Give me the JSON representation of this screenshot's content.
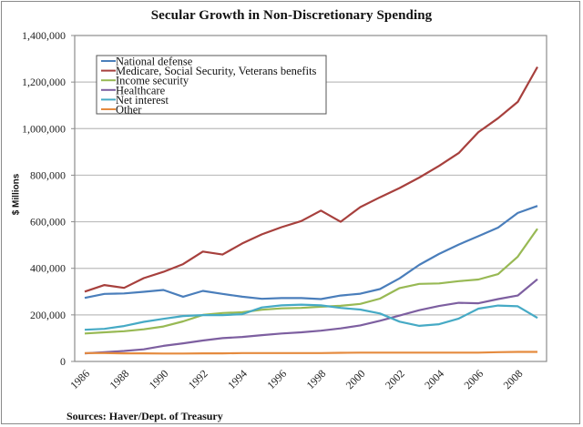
{
  "chart_data": {
    "type": "line",
    "title": "Secular Growth in Non-Discretionary Spending",
    "xlabel": "",
    "ylabel": "$ Millions",
    "source": "Sources: Haver/Dept. of Treasury",
    "ylim": [
      0,
      1400000
    ],
    "y_ticks": [
      0,
      200000,
      400000,
      600000,
      800000,
      1000000,
      1200000,
      1400000
    ],
    "y_tick_labels": [
      "0",
      "200,000",
      "400,000",
      "600,000",
      "800,000",
      "1,000,000",
      "1,200,000",
      "1,400,000"
    ],
    "x": [
      1986,
      1987,
      1988,
      1989,
      1990,
      1991,
      1992,
      1993,
      1994,
      1995,
      1996,
      1997,
      1998,
      1999,
      2000,
      2001,
      2002,
      2003,
      2004,
      2005,
      2006,
      2007,
      2008,
      2009
    ],
    "x_tick_labels": [
      "1986",
      "1988",
      "1990",
      "1992",
      "1994",
      "1996",
      "1998",
      "2000",
      "2002",
      "2004",
      "2006",
      "2008"
    ],
    "grid": true,
    "legend_position": "top-left",
    "series": [
      {
        "name": "National defense",
        "color": "#4a7ebb",
        "values": [
          273000,
          290000,
          292000,
          299000,
          307000,
          278000,
          303000,
          290000,
          278000,
          269000,
          272000,
          272000,
          268000,
          283000,
          291000,
          311000,
          357000,
          415000,
          462000,
          502000,
          538000,
          575000,
          638000,
          668000
        ]
      },
      {
        "name": "Medicare, Social Security, Veterans benefits",
        "color": "#a7403d",
        "values": [
          300000,
          328000,
          316000,
          358000,
          385000,
          418000,
          472000,
          459000,
          507000,
          546000,
          577000,
          603000,
          648000,
          600000,
          663000,
          705000,
          745000,
          790000,
          840000,
          895000,
          985000,
          1045000,
          1115000,
          1265000
        ]
      },
      {
        "name": "Income security",
        "color": "#98b954",
        "values": [
          120000,
          125000,
          130000,
          138000,
          150000,
          172000,
          200000,
          208000,
          211000,
          222000,
          228000,
          230000,
          235000,
          239000,
          247000,
          270000,
          315000,
          333000,
          335000,
          345000,
          352000,
          375000,
          450000,
          570000
        ]
      },
      {
        "name": "Healthcare",
        "color": "#7d5fa0",
        "values": [
          35000,
          40000,
          45000,
          52000,
          67000,
          78000,
          90000,
          100000,
          105000,
          113000,
          120000,
          125000,
          132000,
          142000,
          155000,
          175000,
          197000,
          220000,
          238000,
          252000,
          250000,
          268000,
          283000,
          353000
        ]
      },
      {
        "name": "Net interest",
        "color": "#46aac5",
        "values": [
          136000,
          140000,
          152000,
          170000,
          183000,
          195000,
          199000,
          199000,
          203000,
          232000,
          241000,
          244000,
          241000,
          230000,
          223000,
          206000,
          171000,
          153000,
          160000,
          184000,
          227000,
          240000,
          237000,
          187000
        ]
      },
      {
        "name": "Other",
        "color": "#e58b3f",
        "values": [
          36000,
          36000,
          35000,
          35000,
          34000,
          34000,
          35000,
          35000,
          36000,
          36000,
          36000,
          36000,
          36000,
          37000,
          38000,
          38000,
          38000,
          38000,
          38000,
          38000,
          38000,
          40000,
          41000,
          41000
        ]
      }
    ]
  }
}
